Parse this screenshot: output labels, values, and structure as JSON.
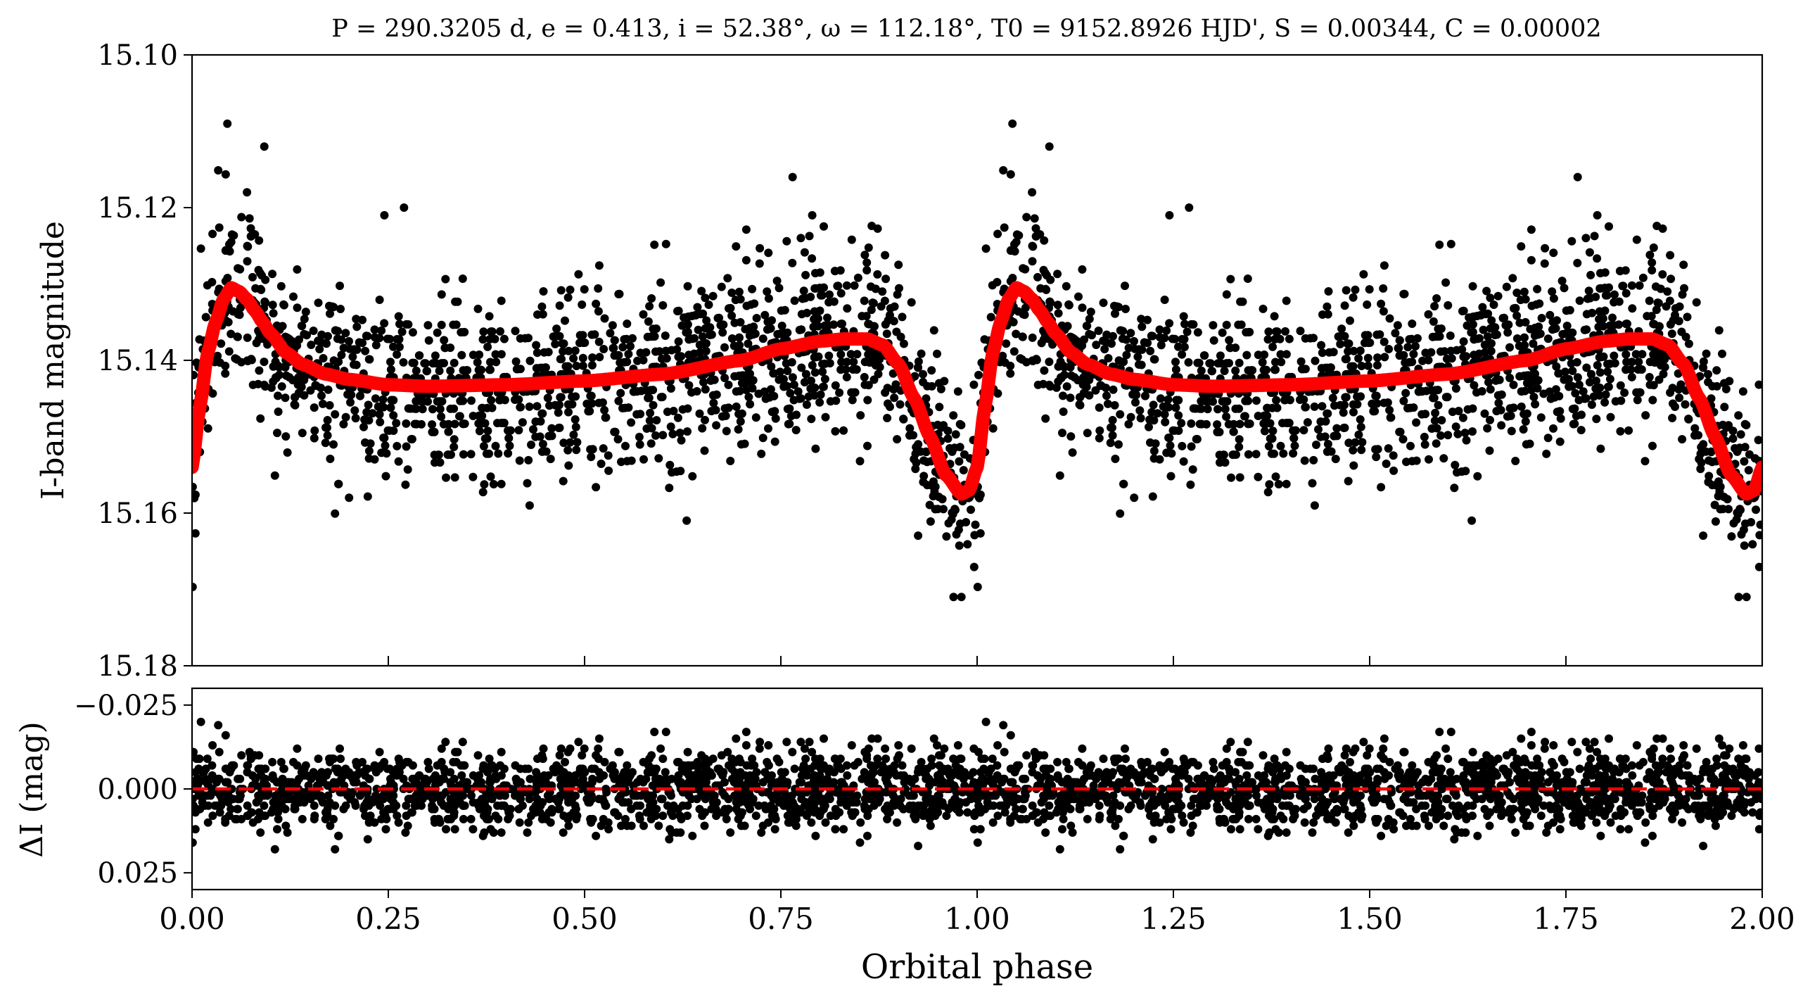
{
  "chart_data": [
    {
      "type": "scatter",
      "panel": "light-curve",
      "title": "P = 290.3205 d, e = 0.413, i = 52.38°, ω = 112.18°, T0 = 9152.8926 HJD', S = 0.00344, C = 0.00002",
      "ylabel": "I-band magnitude",
      "xlim": [
        0.0,
        2.0
      ],
      "ylim": [
        15.1,
        15.18
      ],
      "y_inverted": true,
      "yticks": [
        "15.10",
        "15.12",
        "15.14",
        "15.16",
        "15.18"
      ],
      "xticks": [
        0.0,
        0.25,
        0.5,
        0.75,
        1.0,
        1.25,
        1.5,
        1.75,
        2.0
      ],
      "series": [
        {
          "kind": "observations",
          "color": "#000000",
          "baseline_mag": 15.143,
          "scatter_sigma_mag": 0.0058,
          "points_per_cycle": 1500,
          "repeats_every_phase": 1.0,
          "notable_points": [
            {
              "x": 0.045,
              "y": 15.109
            },
            {
              "x": 0.092,
              "y": 15.112
            },
            {
              "x": 0.07,
              "y": 15.118
            },
            {
              "x": 0.245,
              "y": 15.121
            },
            {
              "x": 0.27,
              "y": 15.12
            },
            {
              "x": 0.765,
              "y": 15.116
            },
            {
              "x": 0.79,
              "y": 15.121
            },
            {
              "x": 0.97,
              "y": 15.171
            },
            {
              "x": 0.98,
              "y": 15.171
            },
            {
              "x": 0.63,
              "y": 15.161
            },
            {
              "x": 0.43,
              "y": 15.159
            },
            {
              "x": 0.2,
              "y": 15.158
            }
          ]
        },
        {
          "kind": "model",
          "color": "#ff0000",
          "x": [
            0.0,
            0.01,
            0.02,
            0.03,
            0.04,
            0.05,
            0.06,
            0.07,
            0.08,
            0.09,
            0.1,
            0.12,
            0.14,
            0.17,
            0.2,
            0.25,
            0.3,
            0.4,
            0.5,
            0.6,
            0.7,
            0.75,
            0.8,
            0.83,
            0.86,
            0.88,
            0.9,
            0.92,
            0.94,
            0.96,
            0.98,
            0.99,
            1.0
          ],
          "y": [
            15.154,
            15.146,
            15.139,
            15.135,
            15.132,
            15.1305,
            15.131,
            15.132,
            15.1335,
            15.135,
            15.1365,
            15.139,
            15.1405,
            15.1418,
            15.1425,
            15.1432,
            15.1434,
            15.1432,
            15.1427,
            15.1418,
            15.14,
            15.1385,
            15.1375,
            15.1372,
            15.1372,
            15.138,
            15.1405,
            15.145,
            15.15,
            15.155,
            15.1575,
            15.157,
            15.154
          ]
        }
      ]
    },
    {
      "type": "scatter",
      "panel": "residuals",
      "xlabel": "Orbital phase",
      "ylabel": "ΔI (mag)",
      "xlim": [
        0.0,
        2.0
      ],
      "ylim": [
        -0.03,
        0.03
      ],
      "y_inverted": true,
      "yticks": [
        "−0.025",
        "0.000",
        "0.025"
      ],
      "xticks": [
        "0.00",
        "0.25",
        "0.50",
        "0.75",
        "1.00",
        "1.25",
        "1.50",
        "1.75",
        "2.00"
      ],
      "series": [
        {
          "kind": "residuals",
          "color": "#000000",
          "sigma_mag": 0.0058
        },
        {
          "kind": "zero-line",
          "color": "#ff0000",
          "style": "dashed",
          "y": 0.0
        }
      ]
    }
  ]
}
